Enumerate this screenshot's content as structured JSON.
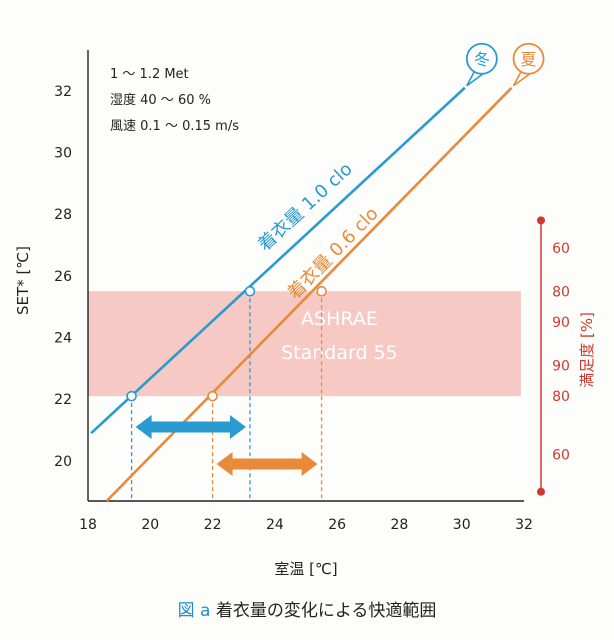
{
  "chart_data": {
    "type": "line",
    "xlabel": "室温 [℃]",
    "ylabel": "SET* [℃]",
    "xlim": [
      18,
      32
    ],
    "ylim": [
      18.7,
      33
    ],
    "x_ticks": [
      "18",
      "20",
      "22",
      "24",
      "26",
      "28",
      "30",
      "32"
    ],
    "y_ticks": [
      "20",
      "22",
      "24",
      "26",
      "28",
      "30",
      "32"
    ],
    "conditions": [
      "1 ～ 1.2 Met",
      "湿度 40 ～ 60 %",
      "風速 0.1 ～ 0.15 m/s"
    ],
    "series": [
      {
        "name": "着衣量 1.0 clo",
        "season": "冬",
        "color": "#2a9bd0",
        "x": [
          18.1,
          30.1
        ],
        "y": [
          20.9,
          32.1
        ],
        "markers": [
          {
            "x": 19.4,
            "y": 22.1
          },
          {
            "x": 23.2,
            "y": 25.5
          }
        ]
      },
      {
        "name": "着衣量 0.6 clo",
        "season": "夏",
        "color": "#e88a3a",
        "x": [
          18.6,
          31.6
        ],
        "y": [
          18.7,
          32.1
        ],
        "markers": [
          {
            "x": 22.0,
            "y": 22.1
          },
          {
            "x": 25.5,
            "y": 25.5
          }
        ]
      }
    ],
    "comfort_band": {
      "label_line1": "ASHRAE",
      "label_line2": "Standard 55",
      "x": [
        18,
        31.9
      ],
      "y": [
        22.1,
        25.5
      ],
      "color": "#f6c9c5"
    },
    "ranges": [
      {
        "series": "着衣量 1.0 clo",
        "x": [
          19.4,
          23.2
        ],
        "color": "#2a9bd0"
      },
      {
        "series": "着衣量 0.6 clo",
        "x": [
          22.0,
          25.5
        ],
        "color": "#e88a3a"
      }
    ],
    "satisfaction_scale": {
      "label": "満足度 [%]",
      "color": "#d03a2e",
      "ticks": [
        {
          "label": "60",
          "y": 26.9
        },
        {
          "label": "80",
          "y": 25.5
        },
        {
          "label": "90",
          "y": 24.5
        },
        {
          "label": "90",
          "y": 23.1
        },
        {
          "label": "80",
          "y": 22.1
        },
        {
          "label": "60",
          "y": 20.2
        }
      ],
      "range_y": [
        19.0,
        27.8
      ]
    }
  },
  "caption": {
    "figure_label": "図 a",
    "text": "着衣量の変化による快適範囲"
  }
}
